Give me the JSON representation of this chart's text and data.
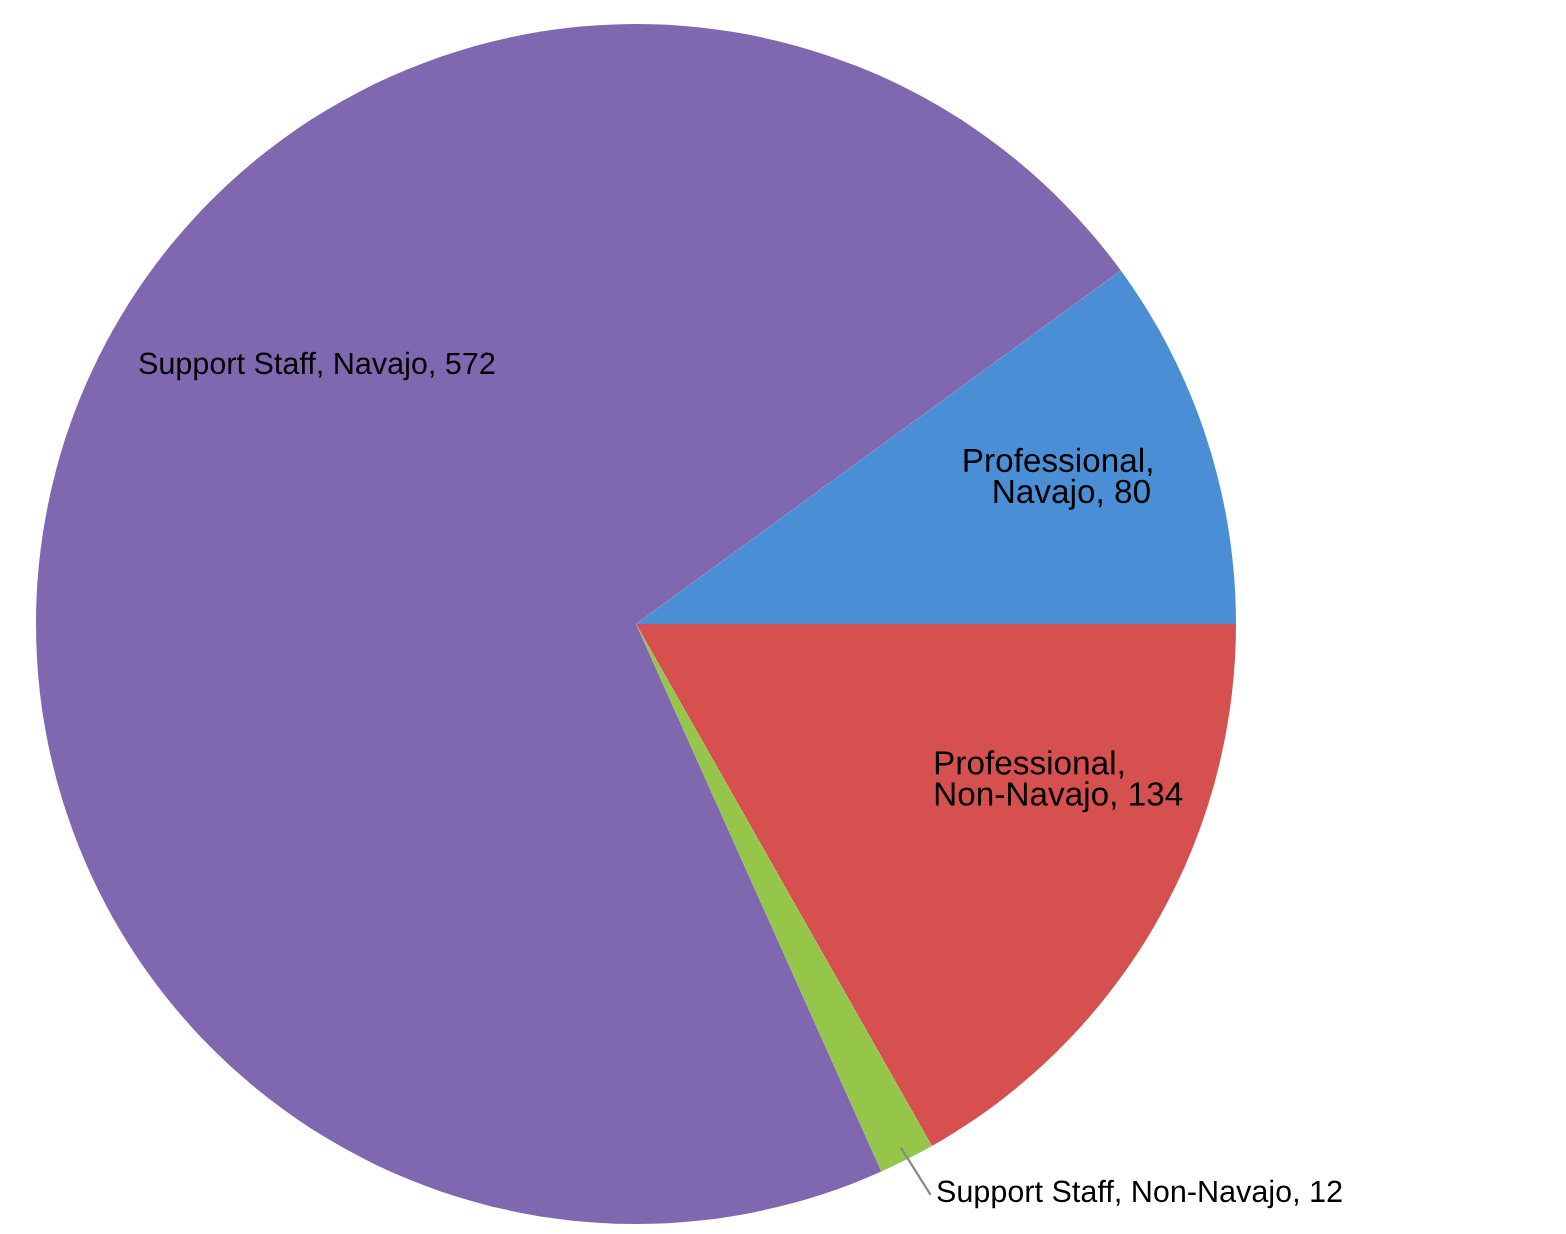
{
  "chart_data": {
    "type": "pie",
    "categories": [
      "Professional, Navajo",
      "Professional, Non-Navajo",
      "Support Staff, Non-Navajo",
      "Support Staff, Navajo"
    ],
    "values": [
      80,
      134,
      12,
      572
    ],
    "colors": [
      "#4a8fd6",
      "#d6504f",
      "#95c64a",
      "#8068b0"
    ],
    "value_labels": [
      ", 80",
      ", 134",
      ", 12",
      ", 572"
    ]
  }
}
